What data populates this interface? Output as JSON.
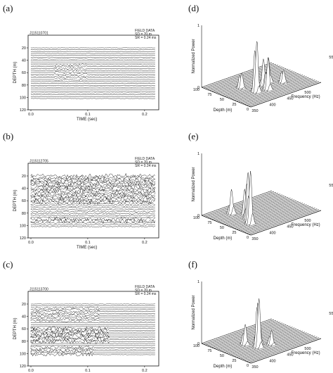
{
  "labels": {
    "a": "(a)",
    "b": "(b)",
    "c": "(c)",
    "d": "(d)",
    "e": "(e)",
    "f": "(f)"
  },
  "seismic": [
    {
      "id": "a",
      "record": "J115110701",
      "info": [
        "FIELD DATA",
        "SD = 70 m",
        "SR = 0.24 ms"
      ],
      "ylabel": "DEPTH (m)",
      "xlabel": "TIME (sec)",
      "xticks": [
        "0.0",
        "0.1",
        "0.2"
      ],
      "yticks": [
        "20",
        "40",
        "60",
        "80",
        "100",
        "120"
      ]
    },
    {
      "id": "b",
      "record": "J115112705",
      "info": [
        "FIELD DATA",
        "SD = 70 m",
        "SR = 0.24 ms"
      ],
      "ylabel": "DEPTH (m)",
      "xlabel": "TIME (sec)",
      "xticks": [
        "0.0",
        "0.1",
        "0.2"
      ],
      "yticks": [
        "20",
        "40",
        "60",
        "80",
        "100",
        "120"
      ]
    },
    {
      "id": "c",
      "record": "J115113700",
      "info": [
        "FIELD DATA",
        "SD = 70 m",
        "SR = 0.24 ms"
      ],
      "ylabel": "DEPTH (m)",
      "xlabel": "TIME (sec)",
      "xticks": [
        "0.0",
        "0.1",
        "0.2"
      ],
      "yticks": [
        "20",
        "40",
        "60",
        "80",
        "100",
        "120"
      ]
    }
  ],
  "spectra": [
    {
      "id": "d",
      "zlabel": "Normalized Power",
      "zticks": [
        "1",
        "0"
      ],
      "depth_label": "Depth (m)",
      "depth_ticks": [
        "100",
        "75",
        "50",
        "25",
        "0"
      ],
      "freq_label": "Frequency (Hz)",
      "freq_ticks": [
        "350",
        "400",
        "450",
        "500",
        "550"
      ]
    },
    {
      "id": "e",
      "zlabel": "Normalized Power",
      "zticks": [
        "1",
        "0"
      ],
      "depth_label": "Depth (m)",
      "depth_ticks": [
        "100",
        "75",
        "50",
        "25",
        "0"
      ],
      "freq_label": "Frequency (Hz)",
      "freq_ticks": [
        "350",
        "400",
        "450",
        "500",
        "550"
      ]
    },
    {
      "id": "f",
      "zlabel": "Normalized Power",
      "zticks": [
        "1",
        "0"
      ],
      "depth_label": "Depth (m)",
      "depth_ticks": [
        "100",
        "75",
        "50",
        "25",
        "0"
      ],
      "freq_label": "Frequency (Hz)",
      "freq_ticks": [
        "350",
        "400",
        "450",
        "500",
        "550"
      ]
    }
  ]
}
